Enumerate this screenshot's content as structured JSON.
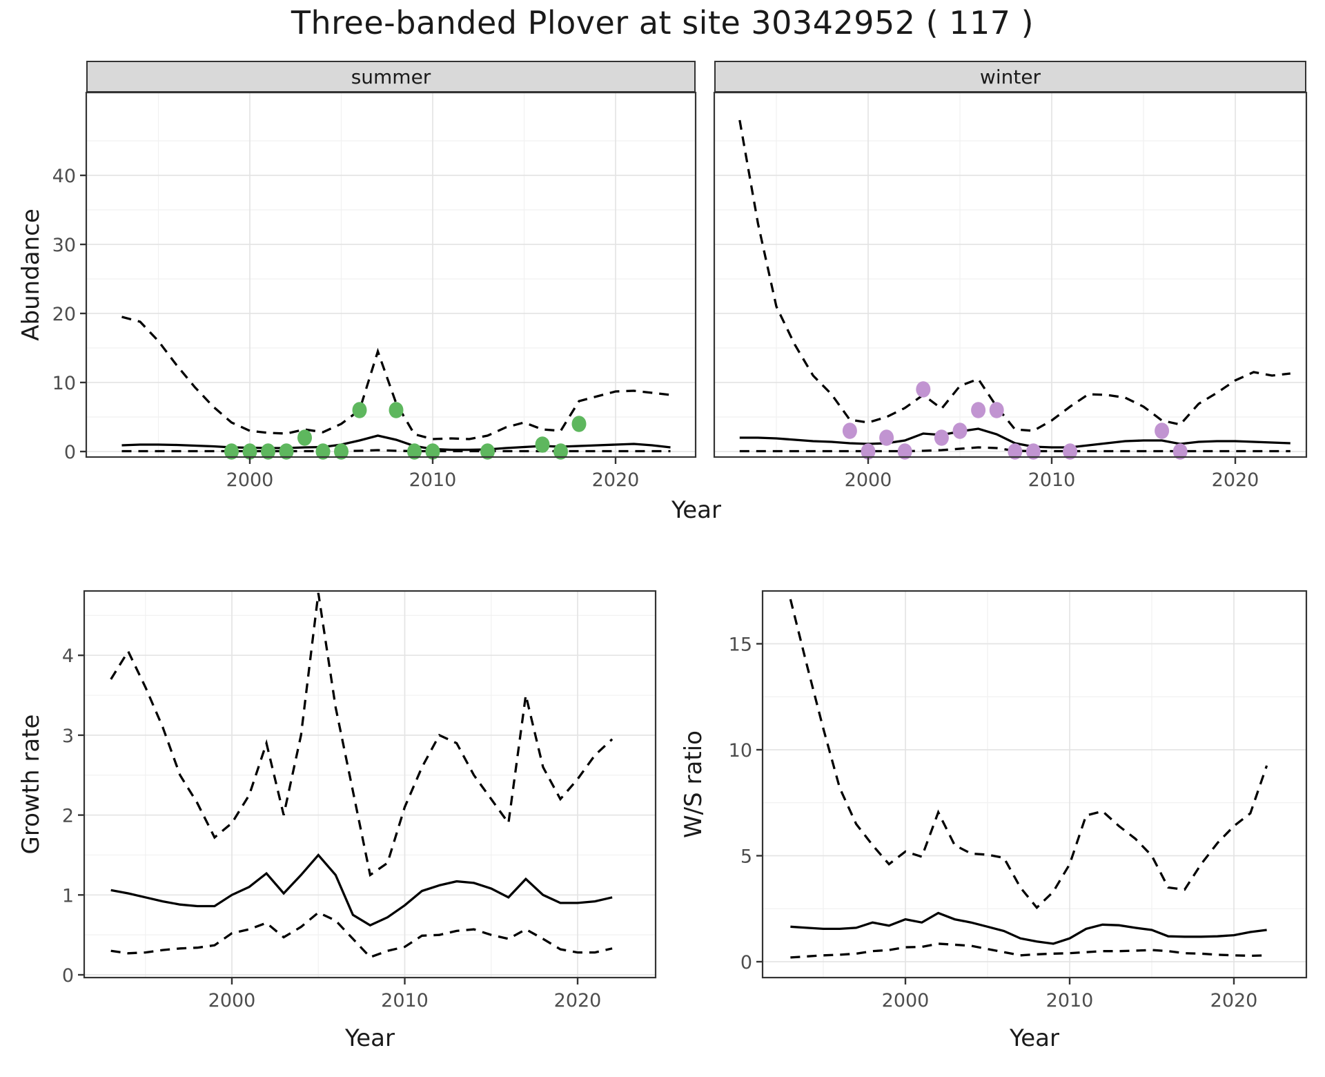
{
  "title": "Three-banded Plover at site 30342952 ( 117 )",
  "facets": {
    "summer": "summer",
    "winter": "winter"
  },
  "axes": {
    "top": {
      "ylabel": "Abundance",
      "xlabel": "Year",
      "y_ticks": [
        0,
        10,
        20,
        30,
        40
      ],
      "x_ticks": [
        2000,
        2010,
        2020
      ]
    },
    "growth": {
      "ylabel": "Growth rate",
      "xlabel": "Year",
      "y_ticks": [
        0,
        1,
        2,
        3,
        4
      ],
      "x_ticks": [
        2000,
        2010,
        2020
      ]
    },
    "ws": {
      "ylabel": "W/S ratio",
      "xlabel": "Year",
      "y_ticks": [
        0,
        5,
        10,
        15
      ],
      "x_ticks": [
        2000,
        2010,
        2020
      ]
    }
  },
  "colors": {
    "summer_points": "#5eb75e",
    "winter_points": "#c194d1",
    "line": "#000000",
    "strip_bg": "#d9d9d9",
    "panel_border": "#333333",
    "grid_major": "#e4e4e4",
    "grid_minor": "#f1f1f1",
    "tick_text": "#4d4d4d",
    "tick_mark": "#333333"
  },
  "chart_data": [
    {
      "id": "abundance-summer",
      "type": "line",
      "facet_label": "summer",
      "ylabel": "Abundance",
      "xlabel": "Year",
      "x": [
        1993,
        1994,
        1995,
        1996,
        1997,
        1998,
        1999,
        2000,
        2001,
        2002,
        2003,
        2004,
        2005,
        2006,
        2007,
        2008,
        2009,
        2010,
        2011,
        2012,
        2013,
        2014,
        2015,
        2016,
        2017,
        2018,
        2019,
        2020,
        2021,
        2022,
        2023
      ],
      "series": [
        {
          "name": "upper_95ci",
          "linestyle": "dashed",
          "values": [
            19.5,
            18.8,
            16,
            12.5,
            9.3,
            6.5,
            4.2,
            3,
            2.7,
            2.6,
            3.2,
            2.8,
            4,
            6,
            14.5,
            7,
            2.5,
            1.8,
            1.9,
            1.8,
            2.3,
            3.5,
            4.2,
            3.2,
            3,
            7.3,
            8,
            8.7,
            8.8,
            8.5,
            8.2
          ]
        },
        {
          "name": "median",
          "linestyle": "solid",
          "values": [
            0.9,
            1,
            1,
            0.95,
            0.85,
            0.75,
            0.6,
            0.55,
            0.5,
            0.5,
            0.6,
            0.65,
            1,
            1.6,
            2.3,
            1.7,
            0.8,
            0.35,
            0.25,
            0.25,
            0.3,
            0.5,
            0.65,
            0.8,
            0.7,
            0.8,
            0.9,
            1,
            1.1,
            0.9,
            0.6
          ]
        },
        {
          "name": "lower_95ci",
          "linestyle": "dashed",
          "values": [
            0.05,
            0.05,
            0.05,
            0.05,
            0.05,
            0.05,
            0.05,
            0.05,
            0.05,
            0.05,
            0.05,
            0.05,
            0.05,
            0.1,
            0.2,
            0.1,
            0.05,
            0.05,
            0.05,
            0.05,
            0.05,
            0.05,
            0.05,
            0.05,
            0.05,
            0.05,
            0.05,
            0.05,
            0.05,
            0.05,
            0.05
          ]
        }
      ],
      "points": {
        "name": "observed_counts",
        "color": "#5eb75e",
        "data": [
          [
            1999,
            0
          ],
          [
            2000,
            0
          ],
          [
            2001,
            0
          ],
          [
            2002,
            0
          ],
          [
            2003,
            2
          ],
          [
            2004,
            0
          ],
          [
            2005,
            0
          ],
          [
            2006,
            6
          ],
          [
            2008,
            6
          ],
          [
            2009,
            0
          ],
          [
            2010,
            0
          ],
          [
            2013,
            0
          ],
          [
            2016,
            1
          ],
          [
            2017,
            0
          ],
          [
            2018,
            4
          ]
        ]
      },
      "xlim": [
        1991.1,
        2024.4
      ],
      "ylim": [
        -0.8,
        52
      ],
      "x_ticks": [
        2000,
        2010,
        2020
      ],
      "y_ticks": [
        0,
        10,
        20,
        30,
        40
      ],
      "x_minor": [
        1995,
        2005,
        2015
      ],
      "y_minor": [
        5,
        15,
        25,
        35,
        45
      ],
      "grid": true,
      "legend_position": "none"
    },
    {
      "id": "abundance-winter",
      "type": "line",
      "facet_label": "winter",
      "ylabel": "Abundance",
      "xlabel": "Year",
      "x": [
        1993,
        1994,
        1995,
        1996,
        1997,
        1998,
        1999,
        2000,
        2001,
        2002,
        2003,
        2004,
        2005,
        2006,
        2007,
        2008,
        2009,
        2010,
        2011,
        2012,
        2013,
        2014,
        2015,
        2016,
        2017,
        2018,
        2019,
        2020,
        2021,
        2022,
        2023
      ],
      "series": [
        {
          "name": "upper_95ci",
          "linestyle": "dashed",
          "values": [
            48,
            33,
            21,
            15.5,
            11,
            8.3,
            4.6,
            4.2,
            5,
            6.3,
            8.2,
            6.2,
            9.5,
            10.5,
            6.5,
            3.2,
            3,
            4.5,
            6.5,
            8.3,
            8.2,
            7.8,
            6.5,
            4.5,
            3.9,
            6.9,
            8.5,
            10.3,
            11.5,
            11,
            11.3
          ]
        },
        {
          "name": "median",
          "linestyle": "solid",
          "values": [
            2,
            2,
            1.9,
            1.7,
            1.5,
            1.4,
            1.2,
            1.1,
            1.2,
            1.6,
            2.6,
            2.4,
            2.9,
            3.3,
            2.5,
            1.2,
            0.7,
            0.6,
            0.6,
            0.9,
            1.2,
            1.5,
            1.6,
            1.6,
            1.1,
            1.4,
            1.5,
            1.5,
            1.4,
            1.3,
            1.2
          ]
        },
        {
          "name": "lower_95ci",
          "linestyle": "dashed",
          "values": [
            0.05,
            0.05,
            0.05,
            0.05,
            0.05,
            0.05,
            0.05,
            0.05,
            0.05,
            0.05,
            0.1,
            0.2,
            0.4,
            0.6,
            0.5,
            0.1,
            0.05,
            0.05,
            0.05,
            0.05,
            0.05,
            0.05,
            0.05,
            0.05,
            0.05,
            0.05,
            0.05,
            0.05,
            0.05,
            0.05,
            0.05
          ]
        }
      ],
      "points": {
        "name": "observed_counts",
        "color": "#c194d1",
        "data": [
          [
            1999,
            3
          ],
          [
            2000,
            0
          ],
          [
            2001,
            2
          ],
          [
            2002,
            0
          ],
          [
            2003,
            9
          ],
          [
            2004,
            2
          ],
          [
            2005,
            3
          ],
          [
            2006,
            6
          ],
          [
            2007,
            6
          ],
          [
            2008,
            0
          ],
          [
            2009,
            0
          ],
          [
            2011,
            0
          ],
          [
            2016,
            3
          ],
          [
            2017,
            0
          ]
        ]
      },
      "xlim": [
        1991.6,
        2023.9
      ],
      "ylim": [
        -0.8,
        52
      ],
      "x_ticks": [
        2000,
        2010,
        2020
      ],
      "y_ticks": [
        0,
        10,
        20,
        30,
        40
      ],
      "x_minor": [
        1995,
        2005,
        2015
      ],
      "y_minor": [
        5,
        15,
        25,
        35,
        45
      ],
      "grid": true,
      "legend_position": "none"
    },
    {
      "id": "growth-rate",
      "type": "line",
      "ylabel": "Growth rate",
      "xlabel": "Year",
      "x": [
        1993,
        1994,
        1995,
        1996,
        1997,
        1998,
        1999,
        2000,
        2001,
        2002,
        2003,
        2004,
        2005,
        2006,
        2007,
        2008,
        2009,
        2010,
        2011,
        2012,
        2013,
        2014,
        2015,
        2016,
        2017,
        2018,
        2019,
        2020,
        2021,
        2022
      ],
      "series": [
        {
          "name": "upper_95ci",
          "linestyle": "dashed",
          "values": [
            3.7,
            4.05,
            3.6,
            3.1,
            2.5,
            2.15,
            1.72,
            1.9,
            2.25,
            2.9,
            2,
            3,
            4.78,
            3.35,
            2.3,
            1.25,
            1.4,
            2.1,
            2.6,
            3,
            2.9,
            2.5,
            2.2,
            1.9,
            3.5,
            2.6,
            2.2,
            2.45,
            2.75,
            2.95
          ]
        },
        {
          "name": "median",
          "linestyle": "solid",
          "values": [
            1.06,
            1.02,
            0.97,
            0.92,
            0.88,
            0.86,
            0.86,
            1,
            1.1,
            1.27,
            1.02,
            1.25,
            1.5,
            1.25,
            0.75,
            0.62,
            0.72,
            0.87,
            1.05,
            1.12,
            1.17,
            1.15,
            1.08,
            0.97,
            1.2,
            1,
            0.9,
            0.9,
            0.92,
            0.97
          ]
        },
        {
          "name": "lower_95ci",
          "linestyle": "dashed",
          "values": [
            0.3,
            0.27,
            0.28,
            0.31,
            0.33,
            0.34,
            0.37,
            0.52,
            0.57,
            0.65,
            0.47,
            0.6,
            0.78,
            0.68,
            0.45,
            0.22,
            0.3,
            0.35,
            0.49,
            0.5,
            0.55,
            0.57,
            0.5,
            0.45,
            0.57,
            0.45,
            0.32,
            0.28,
            0.28,
            0.33
          ]
        }
      ],
      "xlim": [
        1991.5,
        2024.5
      ],
      "ylim": [
        0,
        4.85
      ],
      "x_ticks": [
        2000,
        2010,
        2020
      ],
      "y_ticks": [
        0,
        1,
        2,
        3,
        4
      ],
      "x_minor": [
        1995,
        2005,
        2015
      ],
      "y_minor": [
        0.5,
        1.5,
        2.5,
        3.5,
        4.5
      ],
      "grid": true,
      "legend_position": "none"
    },
    {
      "id": "ws-ratio",
      "type": "line",
      "ylabel": "W/S ratio",
      "xlabel": "Year",
      "x": [
        1993,
        1994,
        1995,
        1996,
        1997,
        1998,
        1999,
        2000,
        2001,
        2002,
        2003,
        2004,
        2005,
        2006,
        2007,
        2008,
        2009,
        2010,
        2011,
        2012,
        2013,
        2014,
        2015,
        2016,
        2017,
        2018,
        2019,
        2020,
        2021,
        2022
      ],
      "series": [
        {
          "name": "upper_95ci",
          "linestyle": "dashed",
          "values": [
            17.1,
            14,
            11,
            8.2,
            6.5,
            5.5,
            4.6,
            5.2,
            4.95,
            7.05,
            5.5,
            5.1,
            5.05,
            4.9,
            3.5,
            2.55,
            3.3,
            4.6,
            6.9,
            7.1,
            6.4,
            5.8,
            5,
            3.5,
            3.4,
            4.6,
            5.6,
            6.4,
            7,
            9.25
          ]
        },
        {
          "name": "median",
          "linestyle": "solid",
          "values": [
            1.65,
            1.6,
            1.55,
            1.55,
            1.6,
            1.85,
            1.7,
            2,
            1.85,
            2.3,
            2,
            1.85,
            1.65,
            1.45,
            1.1,
            0.95,
            0.85,
            1.1,
            1.55,
            1.75,
            1.72,
            1.6,
            1.5,
            1.2,
            1.18,
            1.18,
            1.2,
            1.25,
            1.4,
            1.5
          ]
        },
        {
          "name": "lower_95ci",
          "linestyle": "dashed",
          "values": [
            0.2,
            0.25,
            0.3,
            0.33,
            0.38,
            0.5,
            0.55,
            0.68,
            0.7,
            0.85,
            0.8,
            0.75,
            0.6,
            0.45,
            0.3,
            0.35,
            0.38,
            0.4,
            0.45,
            0.5,
            0.5,
            0.52,
            0.55,
            0.5,
            0.4,
            0.38,
            0.33,
            0.3,
            0.28,
            0.3
          ]
        }
      ],
      "xlim": [
        1991.3,
        2024.4
      ],
      "ylim": [
        0,
        18.2
      ],
      "x_ticks": [
        2000,
        2010,
        2020
      ],
      "y_ticks": [
        0,
        5,
        10,
        15
      ],
      "x_minor": [
        1995,
        2005,
        2015
      ],
      "y_minor": [
        2.5,
        7.5,
        12.5
      ],
      "grid": true,
      "legend_position": "none"
    }
  ]
}
